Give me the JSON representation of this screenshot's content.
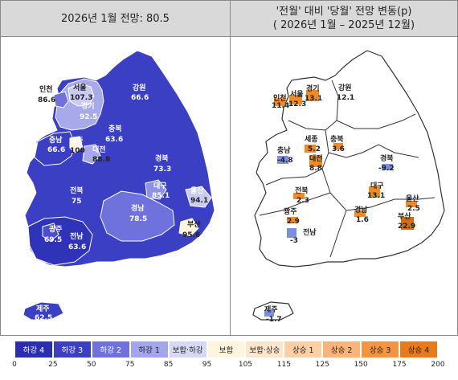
{
  "left_header": {
    "title": "2026년 1월 전망: 80.5"
  },
  "right_header": {
    "title_line1": "'전월' 대비 '당월' 전망 변동(p)",
    "title_line2": "( 2026년 1월 –  2025년 12월)"
  },
  "colors": {
    "deep": "#2e33b8",
    "mid": "#4a4ecd",
    "light": "#6f72dc",
    "pale": "#a9abea",
    "cream": "#fff5dc",
    "orange": "#f08a26",
    "orange_light": "#f6c39a",
    "blue_bar": "#7b8fe0",
    "dark_orange": "#d26d13"
  },
  "left_map": {
    "regions": [
      {
        "id": "seoul",
        "name": "서울",
        "value": "107.3"
      },
      {
        "id": "incheon",
        "name": "인천",
        "value": "86.6"
      },
      {
        "id": "gyeonggi",
        "name": "경기",
        "value": "92.5"
      },
      {
        "id": "gangwon",
        "name": "강원",
        "value": "66.6"
      },
      {
        "id": "chungbuk",
        "name": "충북",
        "value": "63.6"
      },
      {
        "id": "chungnam",
        "name": "충남",
        "value": "66.6"
      },
      {
        "id": "sejong",
        "name": "세종",
        "value": "100"
      },
      {
        "id": "daejeon",
        "name": "대전",
        "value": "88.8"
      },
      {
        "id": "gyeongbuk",
        "name": "경북",
        "value": "73.3"
      },
      {
        "id": "daegu",
        "name": "대구",
        "value": "85.1"
      },
      {
        "id": "ulsan",
        "name": "울산",
        "value": "94.1"
      },
      {
        "id": "jeonbuk",
        "name": "전북",
        "value": "75"
      },
      {
        "id": "gyeongnam",
        "name": "경남",
        "value": "78.5"
      },
      {
        "id": "busan",
        "name": "부산",
        "value": "95.6"
      },
      {
        "id": "gwangju",
        "name": "광주",
        "value": "69.5"
      },
      {
        "id": "jeonnam",
        "name": "전남",
        "value": "63.6"
      },
      {
        "id": "jeju",
        "name": "제주",
        "value": "62.5"
      }
    ]
  },
  "right_map": {
    "regions": [
      {
        "id": "incheon",
        "name": "인천",
        "value": "11.4"
      },
      {
        "id": "seoul",
        "name": "서울",
        "value": "12.3"
      },
      {
        "id": "gyeonggi",
        "name": "경기",
        "value": "13.1"
      },
      {
        "id": "gangwon",
        "name": "강원",
        "value": "12.1"
      },
      {
        "id": "chungnam",
        "name": "충남",
        "value": "-4.8"
      },
      {
        "id": "sejong",
        "name": "세종",
        "value": "5.2"
      },
      {
        "id": "chungbuk",
        "name": "충북",
        "value": "3.6"
      },
      {
        "id": "daejeon",
        "name": "대전",
        "value": "8.8"
      },
      {
        "id": "gyeongbuk",
        "name": "경북",
        "value": "-9.2"
      },
      {
        "id": "jeonbuk",
        "name": "전북",
        "value": "2.3"
      },
      {
        "id": "daegu",
        "name": "대구",
        "value": "13.1"
      },
      {
        "id": "ulsan",
        "name": "울산",
        "value": "2.5"
      },
      {
        "id": "gwangju",
        "name": "광주",
        "value": "2.9"
      },
      {
        "id": "gyeongnam",
        "name": "경남",
        "value": "1.6"
      },
      {
        "id": "busan",
        "name": "부산",
        "value": "22.9"
      },
      {
        "id": "jeonnam",
        "name": "전남",
        "value": "-3"
      },
      {
        "id": "jeju",
        "name": "제주",
        "value": "-1.7"
      }
    ]
  },
  "legend": {
    "categories": [
      {
        "label": "하강 4",
        "color": "#2a2fb0",
        "text_color": "#ffffff"
      },
      {
        "label": "하강 3",
        "color": "#3c40c0",
        "text_color": "#ffffff"
      },
      {
        "label": "하강 2",
        "color": "#6f72dc",
        "text_color": "#ffffff"
      },
      {
        "label": "하강 1",
        "color": "#a3a6ea",
        "text_color": "#222222"
      },
      {
        "label": "보합·하강",
        "color": "#d7d8f6",
        "text_color": "#222222"
      },
      {
        "label": "보합",
        "color": "#fff5dc",
        "text_color": "#222222"
      },
      {
        "label": "보합·상승",
        "color": "#fde6cc",
        "text_color": "#222222"
      },
      {
        "label": "상승 1",
        "color": "#fbd0a4",
        "text_color": "#222222"
      },
      {
        "label": "상승 2",
        "color": "#f8b47a",
        "text_color": "#222222"
      },
      {
        "label": "상승 3",
        "color": "#f39443",
        "text_color": "#222222"
      },
      {
        "label": "상승 4",
        "color": "#e67a1c",
        "text_color": "#222222"
      }
    ],
    "ticks": [
      "0",
      "25",
      "50",
      "75",
      "85",
      "95",
      "105",
      "115",
      "125",
      "150",
      "175",
      "200"
    ]
  }
}
